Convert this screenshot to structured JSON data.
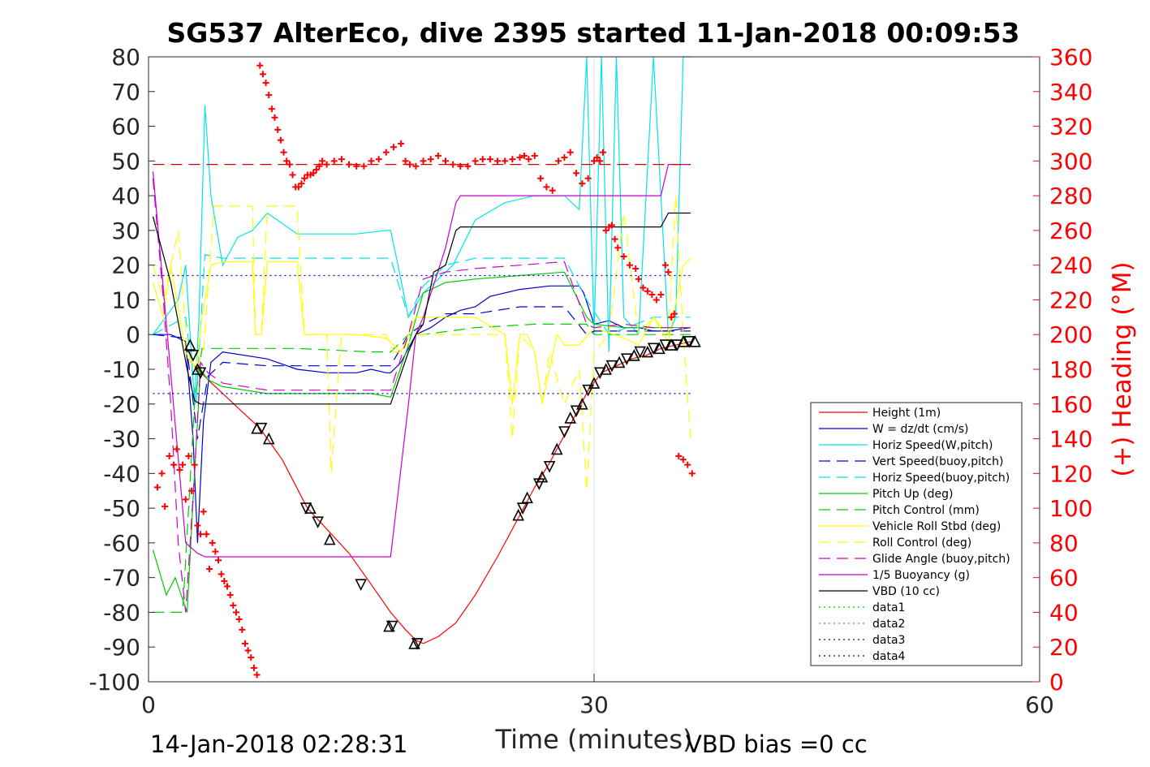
{
  "chart_data": {
    "type": "line",
    "title": "SG537 AlterEco, dive 2395 started 11-Jan-2018 00:09:53",
    "xlabel": "Time (minutes)",
    "ylabel_left": "",
    "ylabel_right": "(+) Heading (°M)",
    "xlim": [
      0,
      60
    ],
    "ylim_left": [
      -100,
      80
    ],
    "ylim_right": [
      0,
      360
    ],
    "x_ticks": [
      "0",
      "30",
      "60"
    ],
    "y_ticks_left": [
      "80",
      "70",
      "60",
      "50",
      "40",
      "30",
      "20",
      "10",
      "0",
      "-10",
      "-20",
      "-30",
      "-40",
      "-50",
      "-60",
      "-70",
      "-80",
      "-90",
      "-100"
    ],
    "y_ticks_right": [
      "360",
      "340",
      "320",
      "300",
      "280",
      "260",
      "240",
      "220",
      "200",
      "180",
      "160",
      "140",
      "120",
      "100",
      "80",
      "60",
      "40",
      "20",
      "0"
    ],
    "grid": "vertical at x=30",
    "legend_position": "lower-right",
    "footer_left": "14-Jan-2018 02:28:31",
    "footer_right": "VBD bias =0 cc",
    "colors": {
      "height": "#ff0000",
      "w": "#0000cc",
      "horiz": "#00e5e5",
      "pitch": "#00cc00",
      "roll": "#ffff00",
      "glide": "#cc00cc",
      "buoy": "#cc00cc",
      "vbd": "#000000",
      "heading": "#ff0000"
    },
    "series": [
      {
        "name": "Height (1m)",
        "style": "solid",
        "color": "#ff0000",
        "x": [
          3.1,
          4.0,
          6,
          7.5,
          9,
          10.7,
          12,
          13.5,
          15,
          16.3,
          17.3,
          18.0,
          18.5,
          19.5,
          20.7,
          22,
          23.5,
          25,
          26,
          27,
          28,
          28.9,
          29.6,
          30.5,
          31.5,
          32.5,
          33.5,
          34.5,
          35.5,
          36.5
        ],
        "y": [
          -9,
          -13,
          -21,
          -27,
          -36,
          -50,
          -56,
          -63,
          -72,
          -80,
          -85,
          -88,
          -89,
          -87,
          -83,
          -75,
          -64,
          -52,
          -44,
          -37,
          -29,
          -22,
          -16,
          -11,
          -9,
          -7,
          -6,
          -4,
          -3,
          -2
        ]
      },
      {
        "name": "W = dz/dt (cm/s)",
        "style": "solid",
        "color": "#0000cc",
        "x": [
          0.3,
          1.5,
          2.5,
          3.0,
          3.3,
          3.7,
          4.2,
          5,
          8,
          10,
          12,
          14,
          15,
          16,
          16.3,
          17,
          18,
          19,
          20,
          21,
          22,
          23,
          25,
          27,
          29,
          29.3,
          30,
          31,
          32,
          33,
          34,
          35,
          36.5
        ],
        "y": [
          0,
          0,
          -2,
          -30,
          -60,
          -25,
          -8,
          -5,
          -7,
          -10,
          -11,
          -11,
          -10,
          -11,
          -11,
          -8,
          0,
          2,
          5,
          7,
          8,
          11,
          13,
          14,
          14,
          12,
          3,
          4,
          2,
          2,
          1,
          1,
          2
        ]
      },
      {
        "name": "Horiz Speed(W,pitch)",
        "style": "solid",
        "color": "#00e5e5",
        "x": [
          0.3,
          2.0,
          2.5,
          3.1,
          3.4,
          3.8,
          4.2,
          5,
          6,
          7,
          8,
          9,
          10,
          12,
          14,
          16,
          16.3,
          16.8,
          17.5,
          18.5,
          19.5,
          20.5,
          22,
          24,
          26,
          28,
          29,
          29.5,
          30,
          30.5,
          31,
          31.5,
          32,
          33,
          34,
          35,
          35.5,
          36,
          36.5
        ],
        "y": [
          0,
          10,
          20,
          -20,
          5,
          66,
          40,
          20,
          28,
          30,
          35,
          32,
          29,
          29,
          29,
          30,
          30,
          20,
          5,
          12,
          16,
          20,
          33,
          38,
          40,
          40,
          36,
          80,
          0,
          80,
          -5,
          80,
          5,
          0,
          80,
          0,
          5,
          80,
          80
        ]
      },
      {
        "name": "Vert Speed(buoy,pitch)",
        "style": "dashed",
        "color": "#0000cc",
        "x": [
          0.3,
          2.5,
          3.3,
          4.0,
          5,
          8,
          12,
          16.3,
          17.5,
          18.5,
          20,
          22,
          25,
          28,
          29.5,
          30,
          33,
          36.5
        ],
        "y": [
          0,
          -1,
          -30,
          -12,
          -8,
          -9,
          -9,
          -9,
          0,
          3,
          6,
          6,
          8,
          8,
          0,
          1,
          1,
          1
        ]
      },
      {
        "name": "Horiz Speed(buoy,pitch)",
        "style": "dashed",
        "color": "#00e5e5",
        "x": [
          0.3,
          2.5,
          3.2,
          3.8,
          5,
          8,
          12,
          16.3,
          17.5,
          18.5,
          20,
          22,
          25,
          28,
          29.5,
          31,
          34,
          36.5
        ],
        "y": [
          0,
          5,
          -20,
          23,
          22,
          22,
          22,
          22,
          5,
          14,
          20,
          22,
          22,
          22,
          10,
          0,
          5,
          5
        ]
      },
      {
        "name": "Pitch Up (deg)",
        "style": "solid",
        "color": "#00cc00",
        "x": [
          0.3,
          1.2,
          1.8,
          2.6,
          3.1,
          3.5,
          4.0,
          5,
          8,
          12,
          15,
          16.3,
          17.5,
          18.5,
          20,
          22,
          25,
          28,
          29.5,
          30,
          32,
          34,
          36.5
        ],
        "y": [
          -62,
          -75,
          -70,
          -80,
          -40,
          -10,
          -13,
          -15,
          -17,
          -17,
          -17,
          -18,
          -3,
          12,
          15,
          16,
          17,
          18,
          5,
          3,
          2,
          2,
          2
        ]
      },
      {
        "name": "Pitch Control (mm)",
        "style": "dashed",
        "color": "#00cc00",
        "x": [
          0.3,
          1.5,
          2.3,
          3.1,
          3.6,
          5,
          10,
          15,
          16.3,
          17.5,
          18.5,
          22,
          26,
          29.5,
          30,
          32,
          34,
          36.5
        ],
        "y": [
          -80,
          -80,
          -80,
          -20,
          -4,
          -4,
          -4,
          -5,
          -5,
          0,
          0,
          2,
          3,
          3,
          0,
          0,
          0,
          0
        ]
      },
      {
        "name": "Vehicle Roll Stbd (deg)",
        "style": "solid",
        "color": "#ffff00",
        "x": [
          0.3,
          1.0,
          1.5,
          2.5,
          3.2,
          3.6,
          4.2,
          5,
          7,
          7.2,
          7.6,
          8,
          9,
          10,
          10.5,
          11,
          11.5,
          12,
          14,
          16,
          16.5,
          17,
          17.5,
          18,
          19,
          20,
          22,
          24,
          24.5,
          25,
          25.5,
          26,
          26.5,
          27,
          27.5,
          28,
          29,
          30,
          32,
          33,
          34,
          35,
          36,
          36.5
        ],
        "y": [
          15,
          5,
          20,
          -5,
          -10,
          5,
          20,
          21,
          21,
          0,
          0,
          21,
          21,
          21,
          0,
          0,
          0,
          0,
          0,
          -1,
          -3,
          -5,
          0,
          5,
          5,
          5,
          5,
          0,
          -20,
          0,
          0,
          -5,
          -20,
          -10,
          0,
          -3,
          -3,
          2,
          -1,
          -3,
          5,
          -2,
          20,
          22
        ]
      },
      {
        "name": "Roll Control (deg)",
        "style": "dashed",
        "color": "#ffff00",
        "x": [
          0.3,
          1,
          2,
          2.6,
          3.2,
          3.7,
          4.4,
          5,
          7,
          7.2,
          7.6,
          8,
          9.5,
          10,
          10.5,
          11.5,
          12,
          12.3,
          12.8,
          13,
          14,
          15,
          16,
          16.5,
          17,
          18,
          20,
          24,
          24.5,
          25,
          26,
          26.5,
          27,
          28,
          29,
          29.5,
          30,
          31,
          32,
          33,
          34,
          35,
          35.5,
          36,
          36.5
        ],
        "y": [
          20,
          10,
          30,
          -5,
          -10,
          -5,
          37,
          37,
          37,
          0,
          0,
          37,
          37,
          37,
          0,
          0,
          0,
          -40,
          -10,
          0,
          0,
          0,
          0,
          -5,
          -5,
          0,
          0,
          0,
          -30,
          0,
          -5,
          -20,
          -5,
          -20,
          -10,
          -45,
          -5,
          0,
          35,
          0,
          5,
          0,
          40,
          0,
          -30
        ]
      },
      {
        "name": "Glide Angle (buoy,pitch)",
        "style": "dashed",
        "color": "#cc00cc",
        "x": [
          0.3,
          1.0,
          1.5,
          2.0,
          2.5,
          3.1,
          3.5,
          4.0,
          5,
          8,
          12,
          15,
          16.3,
          17.5,
          18.5,
          20,
          22,
          25,
          28,
          29.5,
          30,
          32,
          34,
          36.5
        ],
        "y": [
          45,
          10,
          -20,
          -60,
          -80,
          -40,
          -8,
          -11,
          -14,
          -16,
          -16,
          -16,
          -16,
          0,
          16,
          18,
          19,
          20,
          21,
          3,
          2,
          3,
          2,
          2
        ]
      },
      {
        "name": "1/5 Buoyancy (g)",
        "style": "solid",
        "color": "#cc00cc",
        "x": [
          0.3,
          2.5,
          3.3,
          3.8,
          16.3,
          17.5,
          18.0,
          18.5,
          20.0,
          20.7,
          21.0,
          34.5,
          35.0,
          36.5
        ],
        "y": [
          47,
          -60,
          -63,
          -64,
          -64,
          -20,
          0,
          5,
          25,
          38,
          40,
          40,
          49,
          49
        ]
      },
      {
        "name": "VBD (10 cc)",
        "style": "solid",
        "color": "#000000",
        "x": [
          0.3,
          1.5,
          2.6,
          3.1,
          3.5,
          16.3,
          17.5,
          18.0,
          18.5,
          19.2,
          20.0,
          20.7,
          21.0,
          34.5,
          35.0,
          36.5
        ],
        "y": [
          34,
          15,
          -10,
          -19,
          -20,
          -20,
          -5,
          0,
          3,
          18,
          20,
          30,
          31,
          31,
          35,
          35
        ]
      },
      {
        "name": "data1",
        "style": "dotted",
        "color": "#00cc00",
        "x": [],
        "y": []
      },
      {
        "name": "data2",
        "style": "dotted",
        "color": "#00cc00",
        "x": [],
        "y": []
      },
      {
        "name": "data3",
        "style": "dotted",
        "color": "#0000cc",
        "x": [
          0.3,
          36.5
        ],
        "y": [
          17,
          17
        ]
      },
      {
        "name": "data4",
        "style": "dotted",
        "color": "#0000cc",
        "x": [
          0.3,
          36.5
        ],
        "y": [
          -17,
          -17
        ]
      }
    ],
    "heading_target_deg": 298,
    "heading_points": {
      "x": [
        0.6,
        0.9,
        1.1,
        1.4,
        1.7,
        1.9,
        2.1,
        2.3,
        2.5,
        2.7,
        2.9,
        3.1,
        3.3,
        3.5,
        3.7,
        3.9,
        4.1,
        4.3,
        4.5,
        4.7,
        4.9,
        5.1,
        5.3,
        5.5,
        5.7,
        5.9,
        6.1,
        6.3,
        6.5,
        6.7,
        6.9,
        7.1,
        7.3,
        7.5,
        7.7,
        7.9,
        8.1,
        8.3,
        8.5,
        8.7,
        8.9,
        9.1,
        9.3,
        9.5,
        9.7,
        9.9,
        10.1,
        10.3,
        10.5,
        10.7,
        10.9,
        11.1,
        11.3,
        11.5,
        11.7,
        12.0,
        12.5,
        13,
        13.5,
        14,
        14.5,
        15,
        15.5,
        16,
        16.5,
        17,
        17.3,
        17.6,
        18.0,
        18.5,
        19,
        19.5,
        20,
        20.5,
        21,
        21.5,
        22,
        22.5,
        23,
        23.5,
        24,
        24.5,
        25,
        25.3,
        25.6,
        26,
        26.4,
        26.8,
        27.2,
        27.6,
        28,
        28.4,
        28.8,
        29.2,
        29.6,
        30.0,
        30.2,
        30.4,
        30.6,
        30.8,
        31.0,
        31.2,
        31.4,
        31.6,
        32,
        32.4,
        32.8,
        33,
        33.3,
        33.6,
        33.9,
        34.2,
        34.5,
        34.8,
        35.0,
        35.2,
        35.4,
        35.7,
        36.0,
        36.3,
        36.6
      ],
      "y": [
        112,
        120,
        101,
        130,
        125,
        134,
        122,
        125,
        105,
        130,
        110,
        125,
        90,
        85,
        98,
        85,
        65,
        80,
        75,
        70,
        62,
        58,
        55,
        50,
        44,
        40,
        36,
        30,
        22,
        18,
        14,
        8,
        4,
        355,
        350,
        345,
        338,
        330,
        325,
        318,
        312,
        305,
        300,
        298,
        292,
        285,
        285,
        287,
        290,
        292,
        292,
        293,
        295,
        297,
        300,
        298,
        300,
        301,
        298,
        297,
        297,
        300,
        301,
        305,
        308,
        310,
        300,
        298,
        297,
        300,
        301,
        303,
        300,
        298,
        297,
        297,
        300,
        301,
        301,
        300,
        300,
        301,
        302,
        303,
        301,
        303,
        290,
        285,
        283,
        300,
        302,
        305,
        293,
        287,
        290,
        300,
        302,
        300,
        305,
        260,
        262,
        263,
        255,
        250,
        245,
        240,
        238,
        232,
        227,
        225,
        223,
        220,
        223,
        240,
        236,
        210,
        212,
        130,
        128,
        125,
        120
      ]
    },
    "triangle_markers": {
      "x": [
        2.8,
        3.0,
        3.3,
        3.5,
        7.3,
        7.6,
        8.1,
        10.6,
        10.9,
        11.4,
        12.2,
        14.3,
        16.2,
        16.4,
        17.9,
        18.1,
        24.9,
        25.2,
        25.5,
        26.3,
        26.5,
        27.0,
        27.5,
        28.0,
        28.4,
        28.8,
        29.2,
        29.6,
        30.0,
        30.4,
        30.8,
        31.2,
        31.7,
        32.2,
        32.7,
        33.1,
        33.6,
        34.0,
        34.4,
        34.8,
        35.2,
        35.6,
        36.0,
        36.4,
        36.8
      ],
      "y": [
        -3,
        -6,
        -10,
        -11,
        -27,
        -27,
        -30,
        -50,
        -50,
        -54,
        -59,
        -72,
        -84,
        -84,
        -89,
        -89,
        -52,
        -50,
        -47,
        -43,
        -41,
        -38,
        -33,
        -28,
        -24,
        -22,
        -20,
        -16,
        -14,
        -11,
        -10,
        -9,
        -8,
        -7,
        -6,
        -5,
        -5,
        -4,
        -4,
        -3,
        -3,
        -3,
        -2,
        -2,
        -2
      ]
    }
  }
}
